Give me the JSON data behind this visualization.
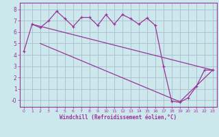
{
  "xlabel": "Windchill (Refroidissement éolien,°C)",
  "background_color": "#cce8ec",
  "grid_color": "#aabccc",
  "line_color": "#993399",
  "xlim": [
    -0.5,
    23.5
  ],
  "ylim": [
    -0.6,
    8.6
  ],
  "xticks": [
    0,
    1,
    2,
    3,
    4,
    5,
    6,
    7,
    8,
    9,
    10,
    11,
    12,
    13,
    14,
    15,
    16,
    17,
    18,
    19,
    20,
    21,
    22,
    23
  ],
  "yticks": [
    0,
    1,
    2,
    3,
    4,
    5,
    6,
    7,
    8
  ],
  "ytick_labels": [
    "-0",
    "1",
    "2",
    "3",
    "4",
    "5",
    "6",
    "7",
    "8"
  ],
  "curve1_x": [
    0,
    1,
    2,
    3,
    4,
    5,
    6,
    7,
    8,
    9,
    10,
    11,
    12,
    13,
    14,
    15,
    16,
    17,
    18,
    19,
    20,
    21,
    22,
    23
  ],
  "curve1_y": [
    4.3,
    6.7,
    6.4,
    7.0,
    7.85,
    7.2,
    6.5,
    7.3,
    7.3,
    6.6,
    7.55,
    6.7,
    7.55,
    7.2,
    6.7,
    7.25,
    6.6,
    3.0,
    -0.1,
    -0.2,
    0.2,
    1.2,
    2.65,
    2.65
  ],
  "curve2_x": [
    1,
    23
  ],
  "curve2_y": [
    6.7,
    2.65
  ],
  "curve3_x": [
    2,
    19,
    23
  ],
  "curve3_y": [
    5.0,
    -0.15,
    2.65
  ]
}
